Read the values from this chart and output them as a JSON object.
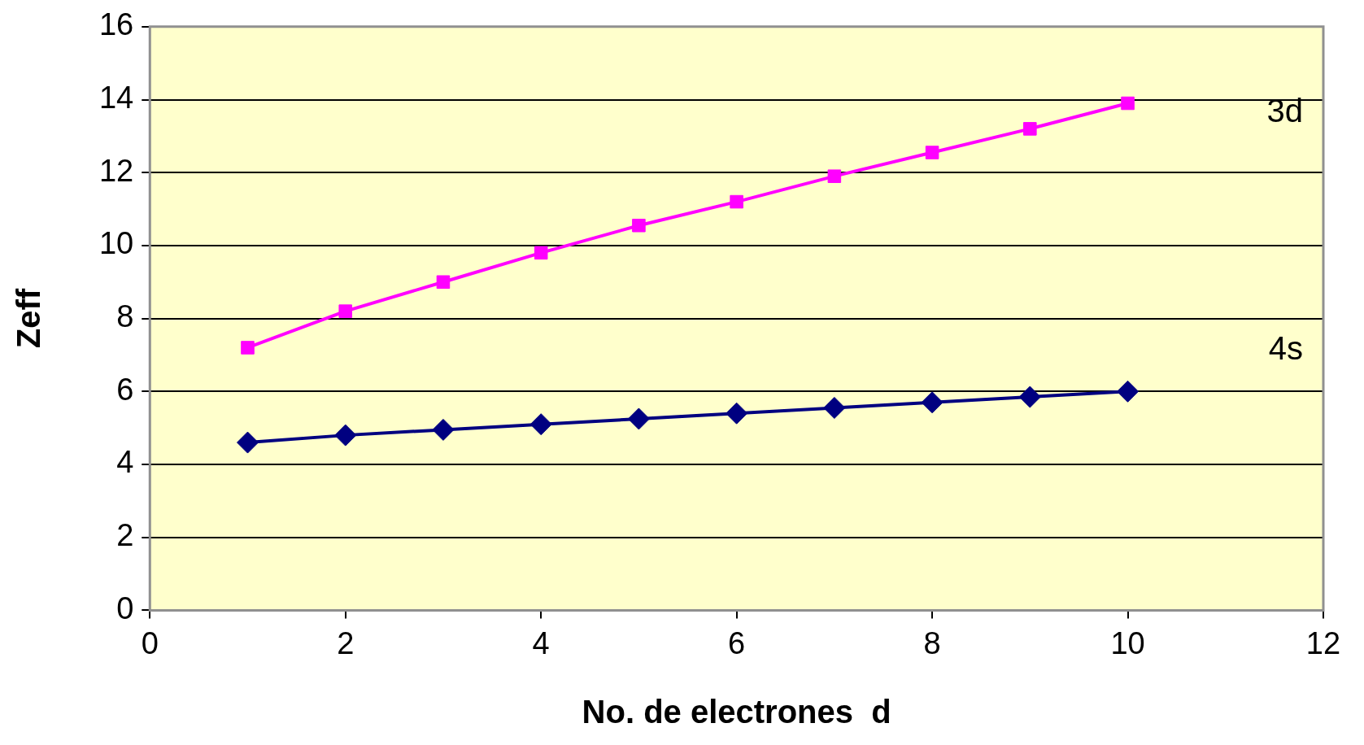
{
  "chart_data": {
    "type": "line",
    "xlabel": "No. de electrones  d",
    "ylabel": "Zeff",
    "x": [
      1,
      2,
      3,
      4,
      5,
      6,
      7,
      8,
      9,
      10
    ],
    "series": [
      {
        "name": "3d",
        "color": "#ff00ff",
        "marker": "square",
        "values": [
          7.2,
          8.2,
          9.0,
          9.8,
          10.55,
          11.2,
          11.9,
          12.55,
          13.2,
          13.9
        ]
      },
      {
        "name": "4s",
        "color": "#000080",
        "marker": "diamond",
        "values": [
          4.6,
          4.8,
          4.95,
          5.1,
          5.25,
          5.4,
          5.55,
          5.7,
          5.85,
          6.0
        ]
      }
    ],
    "xlim": [
      0,
      12
    ],
    "xticks": [
      0,
      2,
      4,
      6,
      8,
      10,
      12
    ],
    "ylim": [
      0,
      16
    ],
    "yticks": [
      0,
      2,
      4,
      6,
      8,
      10,
      12,
      14,
      16
    ],
    "grid": "y",
    "legend": false,
    "line_style": "solid"
  }
}
